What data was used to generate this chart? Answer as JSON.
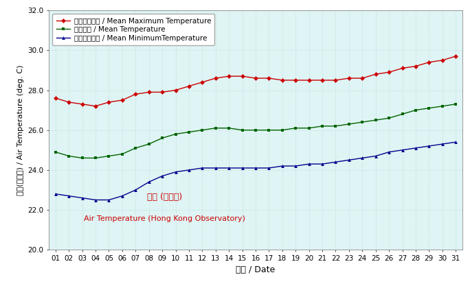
{
  "days": [
    1,
    2,
    3,
    4,
    5,
    6,
    7,
    8,
    9,
    10,
    11,
    12,
    13,
    14,
    15,
    16,
    17,
    18,
    19,
    20,
    21,
    22,
    23,
    24,
    25,
    26,
    27,
    28,
    29,
    30,
    31
  ],
  "mean_max": [
    27.6,
    27.4,
    27.3,
    27.2,
    27.4,
    27.5,
    27.8,
    27.9,
    27.9,
    28.0,
    28.2,
    28.4,
    28.6,
    28.7,
    28.7,
    28.6,
    28.6,
    28.5,
    28.5,
    28.5,
    28.5,
    28.5,
    28.6,
    28.6,
    28.8,
    28.9,
    29.1,
    29.2,
    29.4,
    29.5,
    29.7
  ],
  "mean_temp": [
    24.9,
    24.7,
    24.6,
    24.6,
    24.7,
    24.8,
    25.1,
    25.3,
    25.6,
    25.8,
    25.9,
    26.0,
    26.1,
    26.1,
    26.0,
    26.0,
    26.0,
    26.0,
    26.1,
    26.1,
    26.2,
    26.2,
    26.3,
    26.4,
    26.5,
    26.6,
    26.8,
    27.0,
    27.1,
    27.2,
    27.3
  ],
  "mean_min": [
    22.8,
    22.7,
    22.6,
    22.5,
    22.5,
    22.7,
    23.0,
    23.4,
    23.7,
    23.9,
    24.0,
    24.1,
    24.1,
    24.1,
    24.1,
    24.1,
    24.1,
    24.2,
    24.2,
    24.3,
    24.3,
    24.4,
    24.5,
    24.6,
    24.7,
    24.9,
    25.0,
    25.1,
    25.2,
    25.3,
    25.4
  ],
  "ylim": [
    20.0,
    32.0
  ],
  "yticks": [
    20.0,
    22.0,
    24.0,
    26.0,
    28.0,
    30.0,
    32.0
  ],
  "ylabel": "氣溫(攝氏度) / Air Temperature (deg. C)",
  "xlabel": "日期 / Date",
  "legend_labels": [
    "平均最高氣溫 / Mean Maximum Temperature",
    "平均氣溫 / Mean Temperature",
    "平均最低氣溫 / Mean MinimumTemperature"
  ],
  "annotation_line1": "氣溫 (天文台)",
  "annotation_line2": "Air Temperature (Hong Kong Observatory)",
  "annotation_color": "#cc0000",
  "bg_color": "#dff4f4",
  "red_color": "#cc0000",
  "green_color": "#006400",
  "blue_color": "#00008b",
  "grid_color": "#b0d8d8",
  "outer_bg": "#ffffff"
}
